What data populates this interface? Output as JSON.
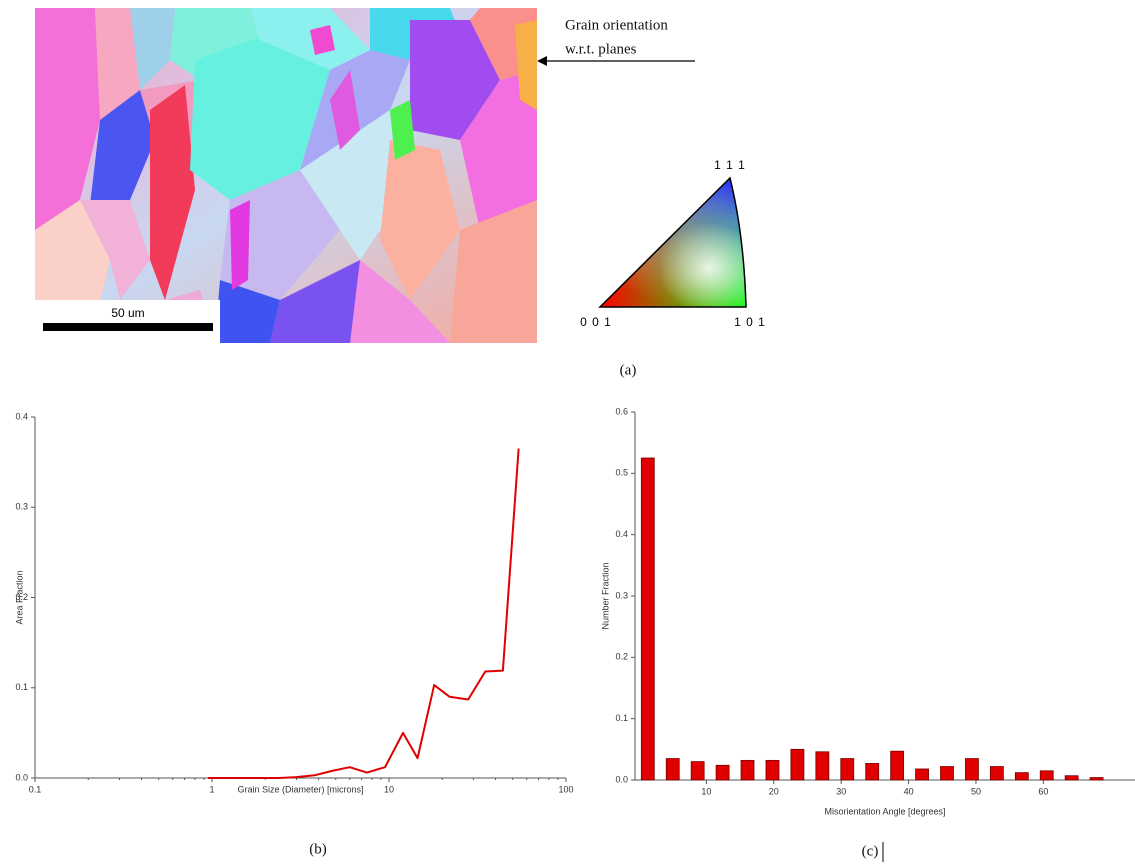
{
  "figure": {
    "annotation": [
      "Grain orientation",
      "w.r.t. planes"
    ],
    "scale_bar": "50 um",
    "triangle_labels": {
      "top": "1 1 1",
      "left": "0 0 1",
      "right": "1 0 1"
    },
    "caption": "(a)"
  },
  "chart_data": [
    {
      "type": "line",
      "x": [
        0.95,
        1.5,
        2.4,
        3,
        3.8,
        4.8,
        6,
        7.5,
        9.5,
        12,
        14.5,
        18,
        22,
        28,
        35,
        44,
        54
      ],
      "values": [
        0,
        0,
        0,
        0.001,
        0.003,
        0.008,
        0.012,
        0.006,
        0.012,
        0.05,
        0.022,
        0.103,
        0.09,
        0.087,
        0.118,
        0.119,
        0.365
      ],
      "color": "#e00000",
      "xlabel": "Grain Size (Diameter) [microns]",
      "ylabel": "Area Fraction",
      "xlim": [
        0.1,
        100
      ],
      "xticks": [
        0.1,
        1,
        10,
        100
      ],
      "log_x": true,
      "ylim": [
        0,
        0.4
      ],
      "yticks": [
        {
          "value": 0,
          "label": "0.0"
        },
        0.1,
        0.2,
        0.3,
        0.4
      ],
      "grid": false,
      "caption": "(b)"
    },
    {
      "type": "bar",
      "x": [
        1.3,
        5,
        8.7,
        12.4,
        16.1,
        19.8,
        23.5,
        27.2,
        30.9,
        34.6,
        38.3,
        42,
        45.7,
        49.4,
        53.1,
        56.8,
        60.5,
        64.2,
        67.9
      ],
      "values": [
        0.525,
        0.035,
        0.03,
        0.024,
        0.032,
        0.032,
        0.05,
        0.046,
        0.035,
        0.027,
        0.047,
        0.018,
        0.022,
        0.035,
        0.022,
        0.012,
        0.015,
        0.007,
        0.004
      ],
      "color": "#e00000",
      "xlabel": "Misorientation Angle [degrees]",
      "ylabel": "Number Fraction",
      "xlim": [
        -0.6,
        73.6
      ],
      "xticks": [
        10,
        20,
        30,
        40,
        50,
        60
      ],
      "log_x": false,
      "ylim": [
        0,
        0.6
      ],
      "yticks": [
        {
          "value": 0,
          "label": "0.0"
        },
        0.1,
        0.2,
        0.3,
        0.4,
        0.5,
        0.6
      ],
      "grid": false,
      "caption": "(c)"
    }
  ]
}
